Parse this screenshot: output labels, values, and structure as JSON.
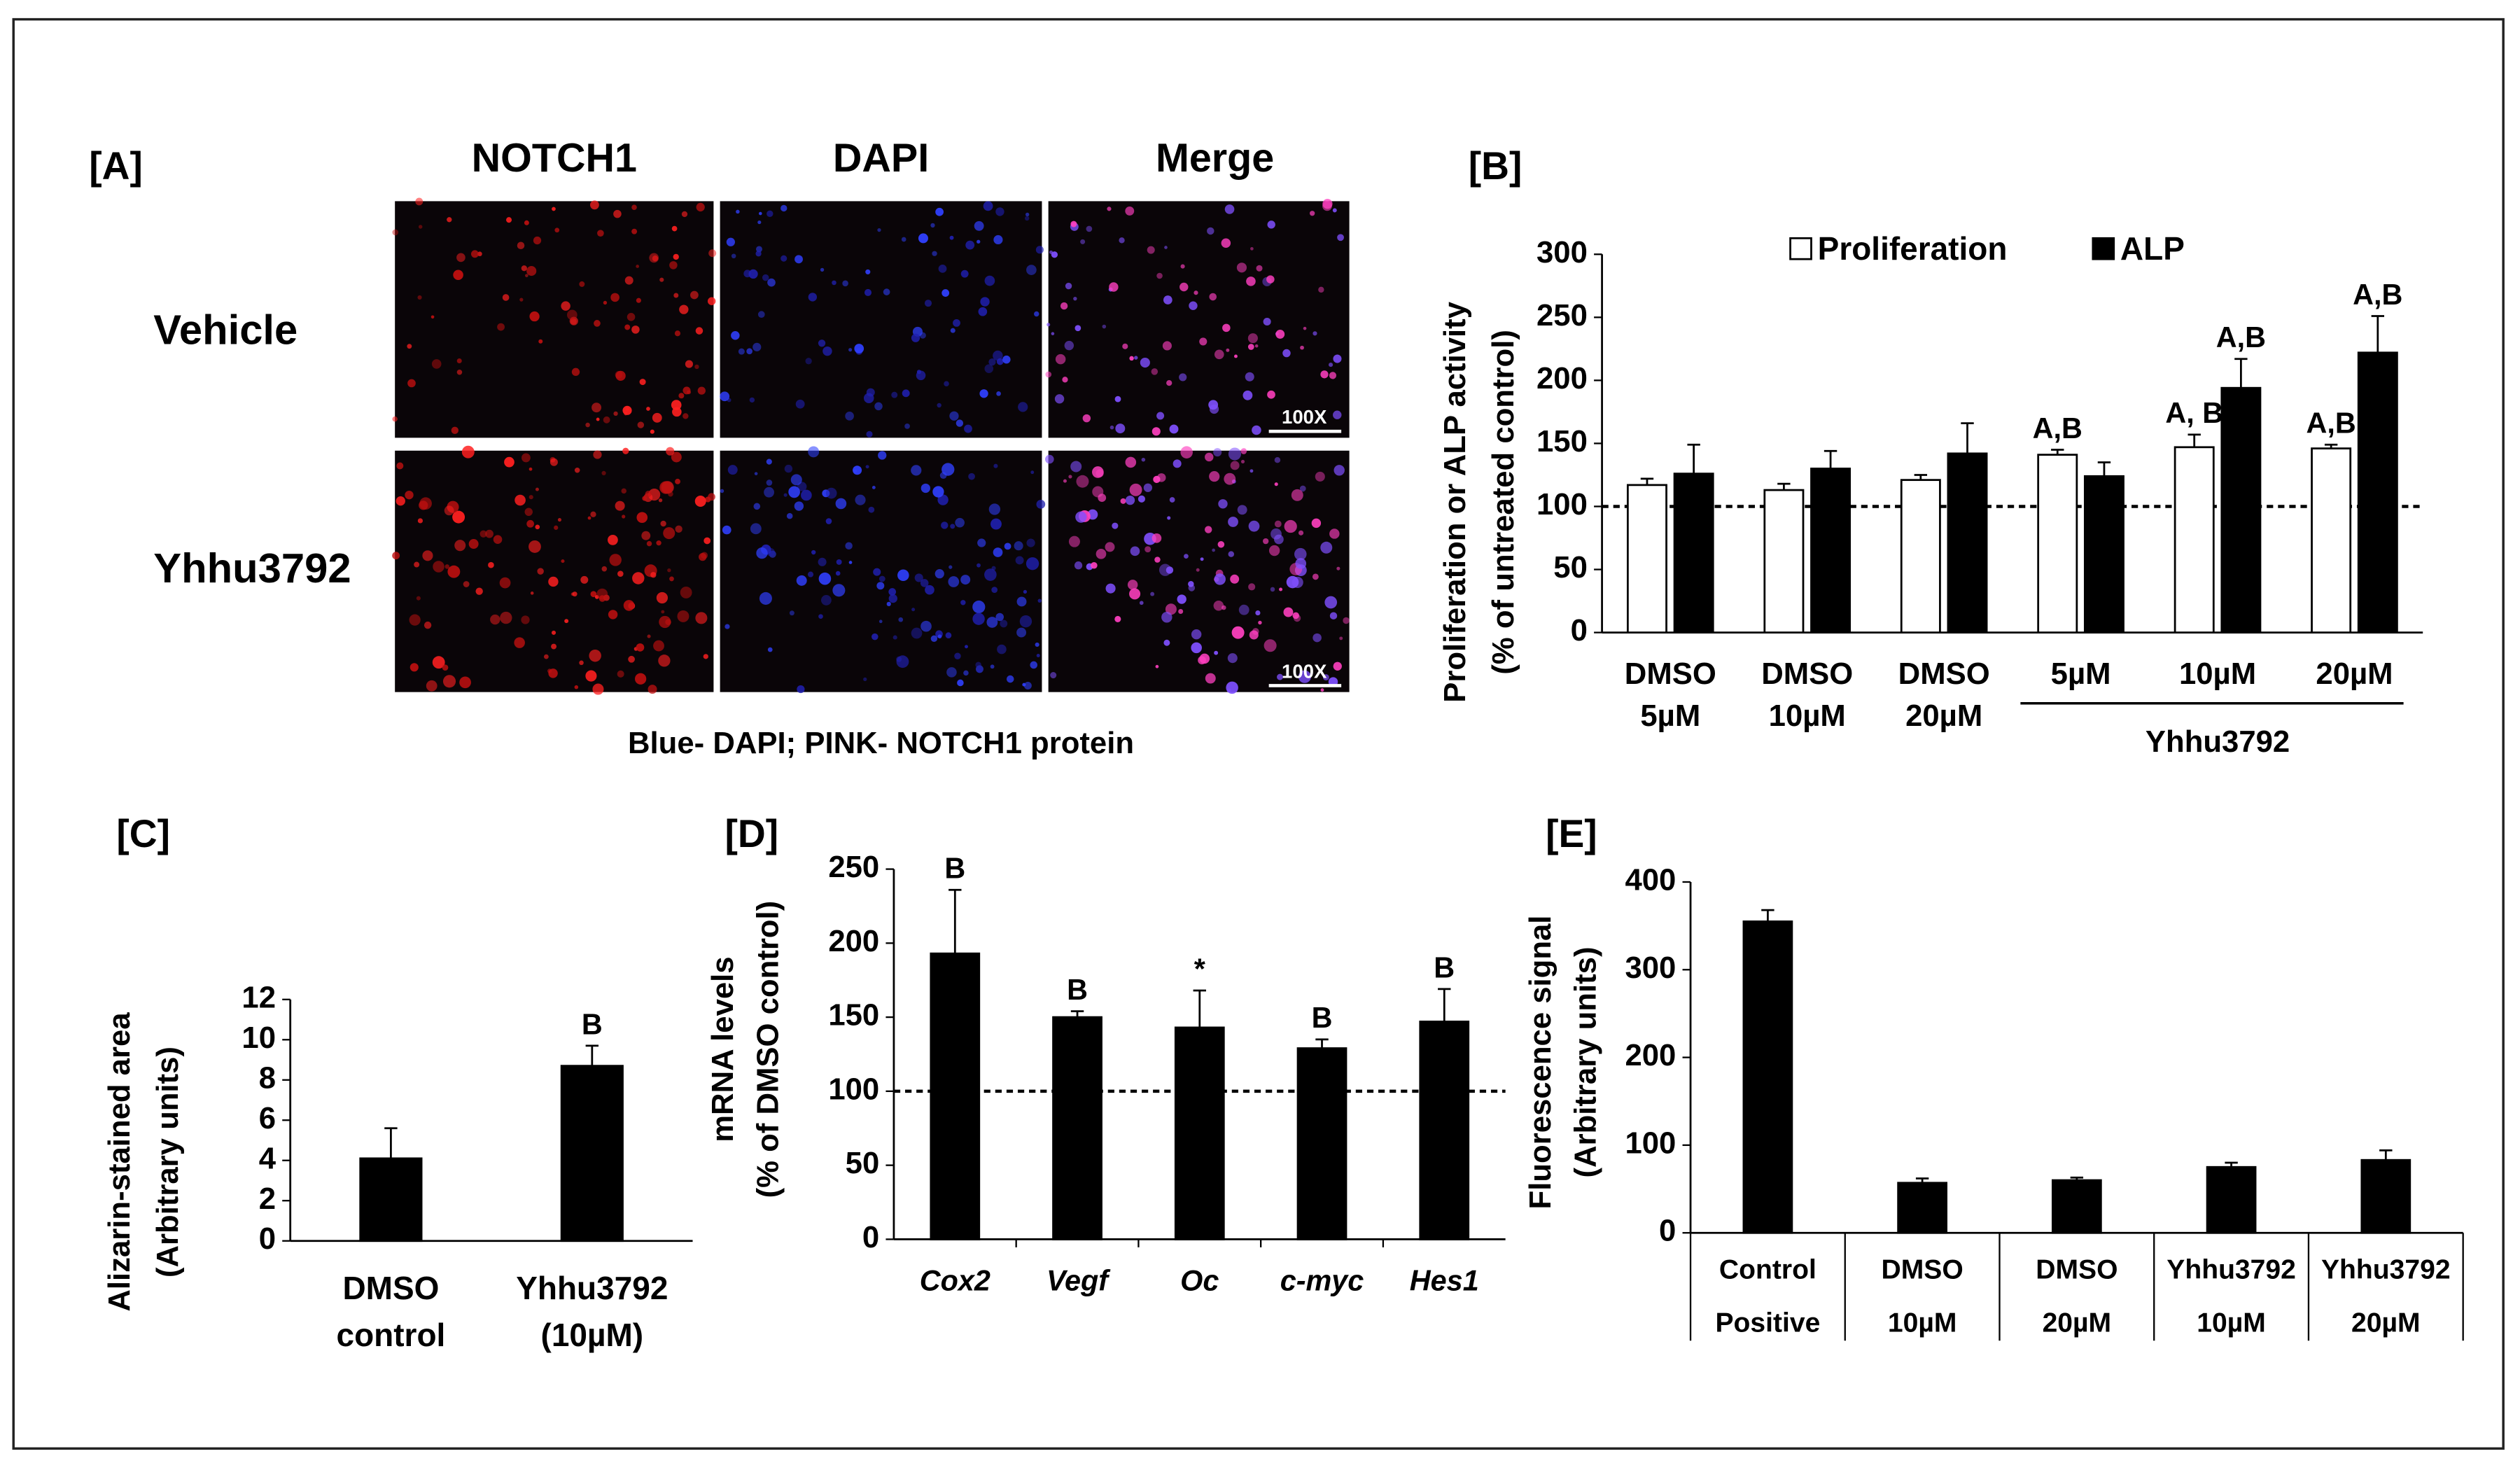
{
  "image_panel": {
    "label": "[A]",
    "columns": [
      "NOTCH1",
      "DAPI",
      "Merge"
    ],
    "rows": [
      "Vehicle",
      "Yhhu3792"
    ],
    "scale_label": "100X",
    "caption": "Blue- DAPI; PINK- NOTCH1 protein"
  },
  "chart_data": [
    {
      "type": "bar",
      "panel_label": "[B]",
      "ylabel": [
        "Proliferation or ALP activity",
        "(% of  untreated control)"
      ],
      "categories": [
        [
          "DMSO",
          "5µM"
        ],
        [
          "DMSO",
          "10µM"
        ],
        [
          "DMSO",
          "20µM"
        ],
        [
          "5µM"
        ],
        [
          "10µM"
        ],
        [
          "20µM"
        ]
      ],
      "group_label": "Yhhu3792",
      "series": [
        {
          "name": "Proliferation",
          "color": "#ffffff",
          "values": [
            117,
            113,
            121,
            141,
            147,
            146
          ],
          "errors": [
            5,
            5,
            4,
            4,
            10,
            3
          ],
          "annotations": [
            null,
            null,
            null,
            "A,B",
            "A, B",
            "A,B"
          ]
        },
        {
          "name": "ALP",
          "color": "#000000",
          "values": [
            126,
            130,
            142,
            124,
            194,
            222
          ],
          "errors": [
            23,
            14,
            24,
            11,
            23,
            29
          ],
          "annotations": [
            null,
            null,
            null,
            null,
            "A,B",
            "A,B"
          ]
        }
      ],
      "reference_line": 100,
      "legend": "top",
      "ylim": [
        0,
        300
      ],
      "yticks": [
        0,
        50,
        100,
        150,
        200,
        250,
        300
      ]
    },
    {
      "type": "bar",
      "panel_label": "[C]",
      "ylabel": [
        "Alizarin-stained area",
        "(Arbitrary units)"
      ],
      "categories": [
        [
          "DMSO",
          "control"
        ],
        [
          "Yhhu3792",
          "(10µM)"
        ]
      ],
      "values": [
        4.1,
        8.7
      ],
      "errors": [
        1.5,
        1.0
      ],
      "annotations": [
        null,
        "B"
      ],
      "color": "#000000",
      "ylim": [
        0,
        12
      ],
      "yticks": [
        0,
        2,
        4,
        6,
        8,
        10,
        12
      ]
    },
    {
      "type": "bar",
      "panel_label": "[D]",
      "ylabel": [
        "mRNA levels",
        "(% of DMSO control)"
      ],
      "categories": [
        [
          "Cox2"
        ],
        [
          "Vegf"
        ],
        [
          "Oc"
        ],
        [
          "c-myc"
        ],
        [
          "Hes1"
        ]
      ],
      "category_font_style": "italic",
      "values": [
        193,
        150,
        143,
        129,
        147
      ],
      "errors": [
        43,
        4,
        25,
        6,
        22
      ],
      "annotations": [
        "B",
        "B",
        "*",
        "B",
        "B"
      ],
      "color": "#000000",
      "reference_line": 100,
      "ylim": [
        0,
        250
      ],
      "yticks": [
        0,
        50,
        100,
        150,
        200,
        250
      ]
    },
    {
      "type": "bar",
      "panel_label": "[E]",
      "ylabel": [
        "Fluorescence signal",
        "(Arbitrary units)"
      ],
      "categories": [
        [
          "Control",
          "Positive"
        ],
        [
          "DMSO",
          "10µM"
        ],
        [
          "DMSO",
          "20µM"
        ],
        [
          "Yhhu3792",
          "10µM"
        ],
        [
          "Yhhu3792",
          "20µM"
        ]
      ],
      "values": [
        355,
        57,
        60,
        75,
        83
      ],
      "errors": [
        13,
        5,
        3,
        5,
        11
      ],
      "color": "#000000",
      "ylim": [
        0,
        400
      ],
      "yticks": [
        0,
        100,
        200,
        300,
        400
      ]
    }
  ]
}
